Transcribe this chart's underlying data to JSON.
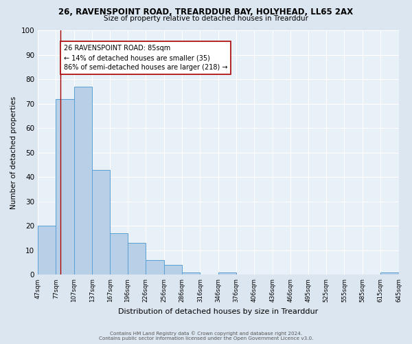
{
  "title_line1": "26, RAVENSPOINT ROAD, TREARDDUR BAY, HOLYHEAD, LL65 2AX",
  "title_line2": "Size of property relative to detached houses in Trearddur",
  "xlabel": "Distribution of detached houses by size in Trearddur",
  "ylabel": "Number of detached properties",
  "bins": [
    47,
    77,
    107,
    137,
    167,
    196,
    226,
    256,
    286,
    316,
    346,
    376,
    406,
    436,
    466,
    495,
    525,
    555,
    585,
    615,
    645
  ],
  "counts": [
    20,
    72,
    77,
    43,
    17,
    13,
    6,
    4,
    1,
    0,
    1,
    0,
    0,
    0,
    0,
    0,
    0,
    0,
    0,
    1
  ],
  "bar_color": "#b8cfe8",
  "bar_edge_color": "#5a9fd4",
  "vline_x": 85,
  "vline_color": "#aa0000",
  "annotation_text": "26 RAVENSPOINT ROAD: 85sqm\n← 14% of detached houses are smaller (35)\n86% of semi-detached houses are larger (218) →",
  "annotation_box_color": "white",
  "annotation_box_edge": "#aa0000",
  "ylim": [
    0,
    100
  ],
  "yticks": [
    0,
    10,
    20,
    30,
    40,
    50,
    60,
    70,
    80,
    90,
    100
  ],
  "tick_labels": [
    "47sqm",
    "77sqm",
    "107sqm",
    "137sqm",
    "167sqm",
    "196sqm",
    "226sqm",
    "256sqm",
    "286sqm",
    "316sqm",
    "346sqm",
    "376sqm",
    "406sqm",
    "436sqm",
    "466sqm",
    "495sqm",
    "525sqm",
    "555sqm",
    "585sqm",
    "615sqm",
    "645sqm"
  ],
  "footer_line1": "Contains HM Land Registry data © Crown copyright and database right 2024.",
  "footer_line2": "Contains public sector information licensed under the Open Government Licence v3.0.",
  "bg_color": "#dce6f0",
  "plot_bg_color": "#e8f0f8"
}
